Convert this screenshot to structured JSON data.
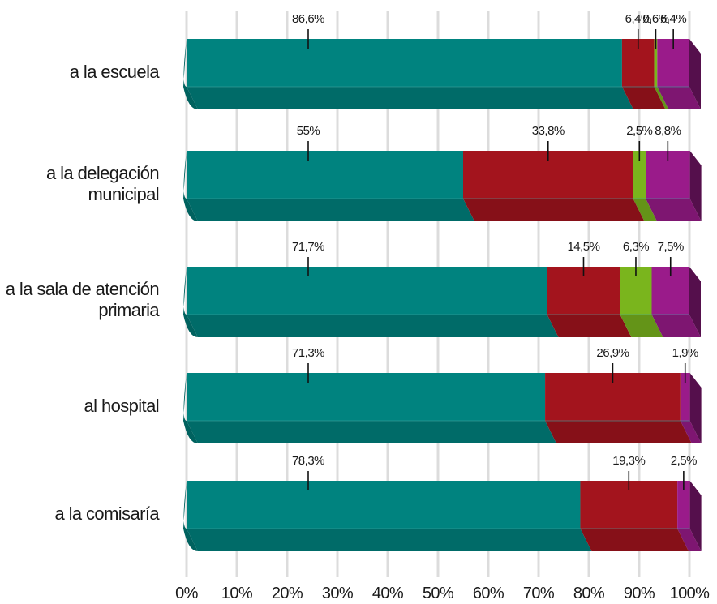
{
  "chart_data": {
    "type": "bar",
    "orientation": "horizontal",
    "stacked": true,
    "percent": true,
    "style": "3d",
    "categories": [
      [
        "a la escuela"
      ],
      [
        "a la delegación",
        "municipal"
      ],
      [
        "a la sala de atención",
        "primaria"
      ],
      [
        "al hospital"
      ],
      [
        "a la comisaría"
      ]
    ],
    "series": [
      {
        "color": "#00837f",
        "values": [
          86.6,
          55,
          71.7,
          71.3,
          78.3
        ]
      },
      {
        "color": "#a3141d",
        "values": [
          6.4,
          33.8,
          14.5,
          26.9,
          19.3
        ]
      },
      {
        "color": "#7ab51d",
        "values": [
          0.6,
          2.5,
          6.3,
          0,
          0
        ]
      },
      {
        "color": "#9a1b8a",
        "values": [
          6.4,
          8.8,
          7.5,
          1.9,
          2.5
        ]
      }
    ],
    "data_labels": [
      [
        "86,6%",
        "55%",
        "71,7%",
        "71,3%",
        "78,3%"
      ],
      [
        "6,4%",
        "33,8%",
        "14,5%",
        "26,9%",
        "19,3%"
      ],
      [
        "0,6%",
        "2,5%",
        "6,3%",
        "",
        ""
      ],
      [
        "6,4%",
        "8,8%",
        "7,5%",
        "1,9%",
        "2,5%"
      ]
    ],
    "xticks": [
      "0%",
      "10%",
      "20%",
      "30%",
      "40%",
      "50%",
      "60%",
      "70%",
      "80%",
      "90%",
      "100%"
    ],
    "xlim": [
      0,
      100
    ],
    "grid": "vertical",
    "legend": "none",
    "title": "",
    "xlabel": "",
    "ylabel": ""
  }
}
